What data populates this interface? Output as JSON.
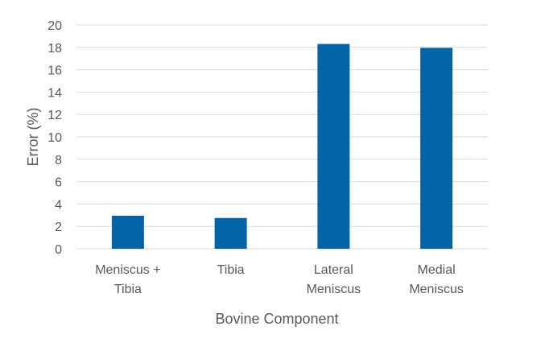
{
  "chart_data": {
    "type": "bar",
    "title": "",
    "xlabel": "Bovine Component",
    "ylabel": "Error (%)",
    "categories": [
      [
        "Meniscus +",
        "Tibia"
      ],
      [
        "Tibia"
      ],
      [
        "Lateral",
        "Meniscus"
      ],
      [
        "Medial",
        "Meniscus"
      ]
    ],
    "values": [
      2.95,
      2.75,
      18.3,
      17.95
    ],
    "ylim": [
      0,
      20
    ],
    "yticks": [
      "0",
      "2",
      "4",
      "6",
      "8",
      "10",
      "12",
      "14",
      "16",
      "18",
      "20"
    ],
    "grid": true,
    "legend": "none"
  },
  "colors": {
    "bar": "#0563a8",
    "grid": "#d9d9d9",
    "tick_text": "#595959",
    "label_text": "#595959"
  }
}
